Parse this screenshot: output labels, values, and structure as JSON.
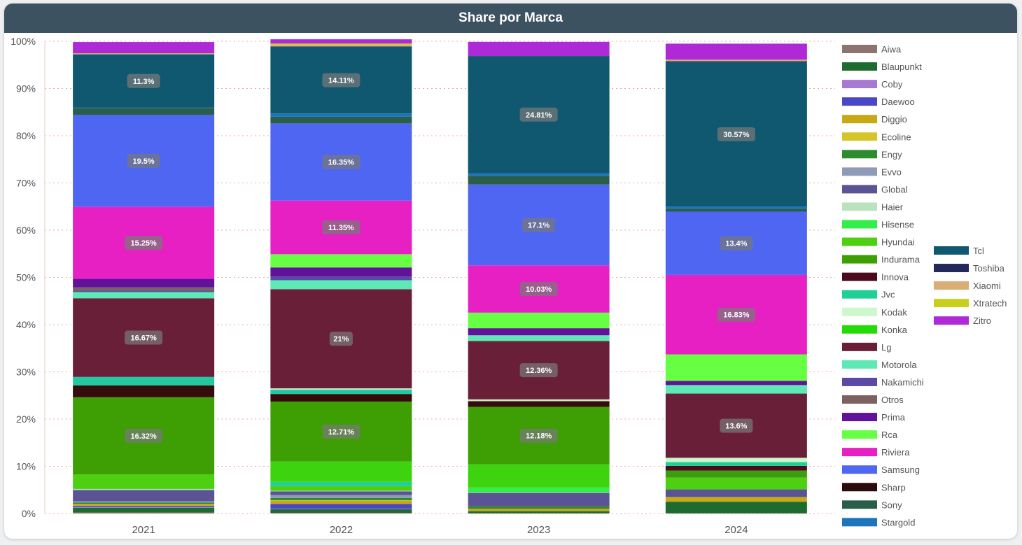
{
  "header": {
    "title": "Share por Marca"
  },
  "chart_data": {
    "type": "bar",
    "stacked": true,
    "title": "Share por Marca",
    "categories": [
      "2021",
      "2022",
      "2023",
      "2024"
    ],
    "ylim": [
      0,
      100
    ],
    "y_ticks": [
      "0%",
      "10%",
      "20%",
      "30%",
      "40%",
      "50%",
      "60%",
      "70%",
      "80%",
      "90%",
      "100%"
    ],
    "grid": true,
    "legend_position": "right",
    "series": [
      {
        "name": "Aiwa",
        "color": "#8d7470",
        "values": [
          0.2,
          0.1,
          0.0,
          0.0
        ],
        "labels": [
          "",
          "",
          "",
          ""
        ]
      },
      {
        "name": "Blaupunkt",
        "color": "#1e6b30",
        "values": [
          1.0,
          0.8,
          0.5,
          2.5
        ],
        "labels": [
          "",
          "",
          "",
          ""
        ]
      },
      {
        "name": "Coby",
        "color": "#a779d3",
        "values": [
          0.1,
          0.1,
          0.0,
          0.0
        ],
        "labels": [
          "",
          "",
          "",
          ""
        ]
      },
      {
        "name": "Daewoo",
        "color": "#4a46c8",
        "values": [
          0.3,
          1.0,
          0.0,
          0.0
        ],
        "labels": [
          "",
          "",
          "",
          ""
        ]
      },
      {
        "name": "Diggio",
        "color": "#c7a916",
        "values": [
          0.3,
          0.7,
          0.5,
          1.0
        ],
        "labels": [
          "",
          "",
          "",
          ""
        ]
      },
      {
        "name": "Ecoline",
        "color": "#d4c62a",
        "values": [
          0.1,
          0.1,
          0.0,
          0.0
        ],
        "labels": [
          "",
          "",
          "",
          ""
        ]
      },
      {
        "name": "Engy",
        "color": "#2e8b2e",
        "values": [
          0.3,
          0.5,
          0.5,
          0.0
        ],
        "labels": [
          "",
          "",
          "",
          ""
        ]
      },
      {
        "name": "Evvo",
        "color": "#8e9bb8",
        "values": [
          0.3,
          0.6,
          0.0,
          0.0
        ],
        "labels": [
          "",
          "",
          "",
          ""
        ]
      },
      {
        "name": "Global",
        "color": "#5b5494",
        "values": [
          2.4,
          0.8,
          2.9,
          1.6
        ],
        "labels": [
          "",
          "",
          "",
          ""
        ]
      },
      {
        "name": "Haier",
        "color": "#b9e3bf",
        "values": [
          0.2,
          0.1,
          0.1,
          0.0
        ],
        "labels": [
          "",
          "",
          "",
          ""
        ]
      },
      {
        "name": "Hisense",
        "color": "#33ee4a",
        "values": [
          0.0,
          0.0,
          1.0,
          0.0
        ],
        "labels": [
          "",
          "",
          "",
          ""
        ]
      },
      {
        "name": "Hyundai",
        "color": "#4fcf12",
        "values": [
          3.1,
          1.0,
          0.0,
          2.5
        ],
        "labels": [
          "",
          "",
          "",
          ""
        ]
      },
      {
        "name": "Indurama",
        "color": "#3b9e0c",
        "values": [
          0.0,
          0.0,
          0.0,
          1.5
        ],
        "labels": [
          "",
          "",
          "",
          ""
        ]
      },
      {
        "name": "Innova",
        "color": "#4d0a1c",
        "values": [
          0.0,
          0.0,
          0.0,
          1.0
        ],
        "labels": [
          "",
          "",
          "",
          ""
        ]
      },
      {
        "name": "Jvc",
        "color": "#1fcf95",
        "values": [
          0.0,
          0.9,
          0.0,
          0.8
        ],
        "labels": [
          "",
          "",
          "",
          ""
        ]
      },
      {
        "name": "Kodak",
        "color": "#ccf8cc",
        "values": [
          0.0,
          0.0,
          0.0,
          0.9
        ],
        "labels": [
          "",
          "",
          "",
          ""
        ]
      },
      {
        "name": "Konka",
        "color": "#3ed30f",
        "values": [
          0.0,
          4.3,
          4.9,
          0.0
        ],
        "labels": [
          "",
          "",
          "",
          ""
        ]
      },
      {
        "name": "Indurama",
        "color": "#3d9f03",
        "values": [
          16.32,
          12.71,
          12.18,
          0.0
        ],
        "labels": [
          "16.32%",
          "12.71%",
          "12.18%",
          ""
        ]
      },
      {
        "name": "Sharp",
        "color": "#350b0b",
        "values": [
          2.5,
          1.6,
          1.2,
          0.0
        ],
        "labels": [
          "",
          "",
          "",
          ""
        ]
      },
      {
        "name": "Motorola",
        "color": "#22c9a0",
        "values": [
          1.8,
          0.9,
          0.0,
          0.0
        ],
        "labels": [
          "",
          "",
          "",
          ""
        ]
      },
      {
        "name": "Haier",
        "color": "#c7ecc7",
        "values": [
          0.0,
          0.3,
          0.4,
          0.0
        ],
        "labels": [
          "",
          "",
          "",
          ""
        ]
      },
      {
        "name": "Lg",
        "color": "#6a1f39",
        "values": [
          16.67,
          21.0,
          12.36,
          13.6
        ],
        "labels": [
          "16.67%",
          "21%",
          "12.36%",
          "13.6%"
        ]
      },
      {
        "name": "Motorola",
        "color": "#5ee8b6",
        "values": [
          1.3,
          1.9,
          1.2,
          1.8
        ],
        "labels": [
          "",
          "",
          "",
          ""
        ]
      },
      {
        "name": "Nakamichi",
        "color": "#5a4aa6",
        "values": [
          0.3,
          0.8,
          0.0,
          0.0
        ],
        "labels": [
          "",
          "",
          "",
          ""
        ]
      },
      {
        "name": "Otros",
        "color": "#7d6060",
        "values": [
          0.7,
          0.0,
          0.0,
          0.0
        ],
        "labels": [
          "",
          "",
          "",
          ""
        ]
      },
      {
        "name": "Prima",
        "color": "#62129a",
        "values": [
          1.8,
          1.9,
          1.5,
          0.9
        ],
        "labels": [
          "",
          "",
          "",
          ""
        ]
      },
      {
        "name": "Rca",
        "color": "#66ff44",
        "values": [
          0.0,
          2.8,
          3.3,
          5.6
        ],
        "labels": [
          "",
          "",
          "",
          ""
        ]
      },
      {
        "name": "Riviera",
        "color": "#e620c2",
        "values": [
          15.25,
          11.35,
          10.03,
          16.83
        ],
        "labels": [
          "15.25%",
          "11.35%",
          "10.03%",
          "16.83%"
        ]
      },
      {
        "name": "Samsung",
        "color": "#4e66f2",
        "values": [
          19.5,
          16.35,
          17.1,
          13.4
        ],
        "labels": [
          "19.5%",
          "16.35%",
          "17.1%",
          "13.4%"
        ]
      },
      {
        "name": "Sharp",
        "color": "#2b0b0b",
        "values": [
          0.0,
          0.0,
          0.0,
          0.0
        ],
        "labels": [
          "",
          "",
          "",
          ""
        ]
      },
      {
        "name": "Sony",
        "color": "#2a5e4a",
        "values": [
          1.4,
          1.4,
          1.8,
          0.6
        ],
        "labels": [
          "",
          "",
          "",
          ""
        ]
      },
      {
        "name": "Stargold",
        "color": "#1c75ba",
        "values": [
          0.1,
          0.7,
          0.6,
          0.5
        ],
        "labels": [
          "",
          "",
          "",
          ""
        ]
      },
      {
        "name": "Tcl",
        "color": "#10586f",
        "values": [
          11.3,
          14.11,
          24.81,
          30.57
        ],
        "labels": [
          "11.3%",
          "14.11%",
          "24.81%",
          "30.57%"
        ]
      },
      {
        "name": "Toshiba",
        "color": "#23285a",
        "values": [
          0.0,
          0.1,
          0.0,
          0.2
        ],
        "labels": [
          "",
          "",
          "",
          ""
        ]
      },
      {
        "name": "Xiaomi",
        "color": "#d9ad75",
        "values": [
          0.1,
          0.3,
          0.0,
          0.3
        ],
        "labels": [
          "",
          "",
          "",
          ""
        ]
      },
      {
        "name": "Xtratech",
        "color": "#c8cf1e",
        "values": [
          0.1,
          0.3,
          0.0,
          0.0
        ],
        "labels": [
          "",
          "",
          "",
          ""
        ]
      },
      {
        "name": "Zitro",
        "color": "#ad2ad6",
        "values": [
          2.4,
          0.9,
          3.0,
          3.4
        ],
        "labels": [
          "",
          "",
          "",
          ""
        ]
      }
    ],
    "legend": [
      {
        "name": "Aiwa",
        "color": "#8d7470"
      },
      {
        "name": "Blaupunkt",
        "color": "#1e6b30"
      },
      {
        "name": "Coby",
        "color": "#a779d3"
      },
      {
        "name": "Daewoo",
        "color": "#4a46c8"
      },
      {
        "name": "Diggio",
        "color": "#c7a916"
      },
      {
        "name": "Ecoline",
        "color": "#d4c62a"
      },
      {
        "name": "Engy",
        "color": "#2e8b2e"
      },
      {
        "name": "Evvo",
        "color": "#8e9bb8"
      },
      {
        "name": "Global",
        "color": "#5b5494"
      },
      {
        "name": "Haier",
        "color": "#b9e3bf"
      },
      {
        "name": "Hisense",
        "color": "#33ee4a"
      },
      {
        "name": "Hyundai",
        "color": "#4fcf12"
      },
      {
        "name": "Indurama",
        "color": "#3d9f03"
      },
      {
        "name": "Innova",
        "color": "#4d0a1c"
      },
      {
        "name": "Jvc",
        "color": "#1fcf95"
      },
      {
        "name": "Kodak",
        "color": "#ccf8cc"
      },
      {
        "name": "Konka",
        "color": "#22dd05"
      },
      {
        "name": "Lg",
        "color": "#6a1f39"
      },
      {
        "name": "Motorola",
        "color": "#5ee8b6"
      },
      {
        "name": "Nakamichi",
        "color": "#5a4aa6"
      },
      {
        "name": "Otros",
        "color": "#7d6060"
      },
      {
        "name": "Prima",
        "color": "#62129a"
      },
      {
        "name": "Rca",
        "color": "#66ff44"
      },
      {
        "name": "Riviera",
        "color": "#e620c2"
      },
      {
        "name": "Samsung",
        "color": "#4e66f2"
      },
      {
        "name": "Sharp",
        "color": "#2b0b0b"
      },
      {
        "name": "Sony",
        "color": "#2a5e4a"
      },
      {
        "name": "Stargold",
        "color": "#1c75ba"
      },
      {
        "name": "Tcl",
        "color": "#10586f"
      },
      {
        "name": "Toshiba",
        "color": "#23285a"
      },
      {
        "name": "Xiaomi",
        "color": "#d9ad75"
      },
      {
        "name": "Xtratech",
        "color": "#c8cf1e"
      },
      {
        "name": "Zitro",
        "color": "#ad2ad6"
      }
    ]
  }
}
